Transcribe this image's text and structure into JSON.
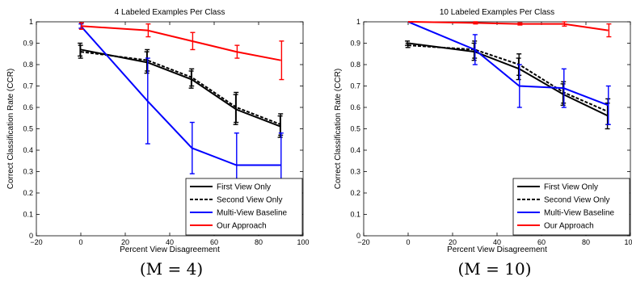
{
  "colors": {
    "first_view": "#000000",
    "second_view": "#000000",
    "multi_view": "#0000ff",
    "our_approach": "#ff0000"
  },
  "chart_data": [
    {
      "type": "line",
      "title": "4 Labeled Examples Per Class",
      "xlabel": "Percent View Disagreement",
      "ylabel": "Correct Classification Rate (CCR)",
      "xlim": [
        -20,
        100
      ],
      "ylim": [
        0,
        1
      ],
      "xticks": [
        "−20",
        "0",
        "20",
        "40",
        "60",
        "80",
        "100"
      ],
      "yticks": [
        "0",
        "0.1",
        "0.2",
        "0.3",
        "0.4",
        "0.5",
        "0.6",
        "0.7",
        "0.8",
        "0.9",
        "1"
      ],
      "grid": false,
      "legend_position": "bottom-right",
      "caption": "(M = 4)",
      "x": [
        0,
        30,
        50,
        70,
        90
      ],
      "series": [
        {
          "name": "First View Only",
          "values": [
            0.87,
            0.81,
            0.73,
            0.59,
            0.51
          ],
          "err": [
            0.03,
            0.05,
            0.04,
            0.07,
            0.05
          ]
        },
        {
          "name": "Second View Only",
          "values": [
            0.86,
            0.82,
            0.74,
            0.6,
            0.52
          ],
          "err": [
            0.03,
            0.05,
            0.04,
            0.07,
            0.05
          ]
        },
        {
          "name": "Multi-View Baseline",
          "values": [
            0.98,
            0.63,
            0.41,
            0.33,
            0.33
          ],
          "err": [
            0.01,
            0.2,
            0.12,
            0.15,
            0.15
          ]
        },
        {
          "name": "Our Approach",
          "values": [
            0.98,
            0.96,
            0.91,
            0.86,
            0.82
          ],
          "err": [
            0.015,
            0.03,
            0.04,
            0.03,
            0.09
          ]
        }
      ]
    },
    {
      "type": "line",
      "title": "10 Labeled Examples Per Class",
      "xlabel": "Percent View Disagreement",
      "ylabel": "Correct Classification Rate (CCR)",
      "xlim": [
        -20,
        100
      ],
      "ylim": [
        0,
        1
      ],
      "xticks": [
        "−20",
        "0",
        "20",
        "40",
        "60",
        "80",
        "100"
      ],
      "yticks": [
        "0",
        "0.1",
        "0.2",
        "0.3",
        "0.4",
        "0.5",
        "0.6",
        "0.7",
        "0.8",
        "0.9",
        "1"
      ],
      "grid": false,
      "legend_position": "bottom-right",
      "caption": "(M = 10)",
      "x": [
        0,
        30,
        50,
        70,
        90
      ],
      "series": [
        {
          "name": "First View Only",
          "values": [
            0.9,
            0.86,
            0.78,
            0.66,
            0.56
          ],
          "err": [
            0.01,
            0.04,
            0.05,
            0.05,
            0.06
          ]
        },
        {
          "name": "Second View Only",
          "values": [
            0.89,
            0.87,
            0.8,
            0.67,
            0.58
          ],
          "err": [
            0.01,
            0.04,
            0.05,
            0.05,
            0.06
          ]
        },
        {
          "name": "Multi-View Baseline",
          "values": [
            1.0,
            0.87,
            0.7,
            0.69,
            0.61
          ],
          "err": [
            0.0,
            0.07,
            0.1,
            0.09,
            0.09
          ]
        },
        {
          "name": "Our Approach",
          "values": [
            1.0,
            0.995,
            0.99,
            0.99,
            0.96
          ],
          "err": [
            0.0,
            0.005,
            0.005,
            0.01,
            0.03
          ]
        }
      ]
    }
  ]
}
